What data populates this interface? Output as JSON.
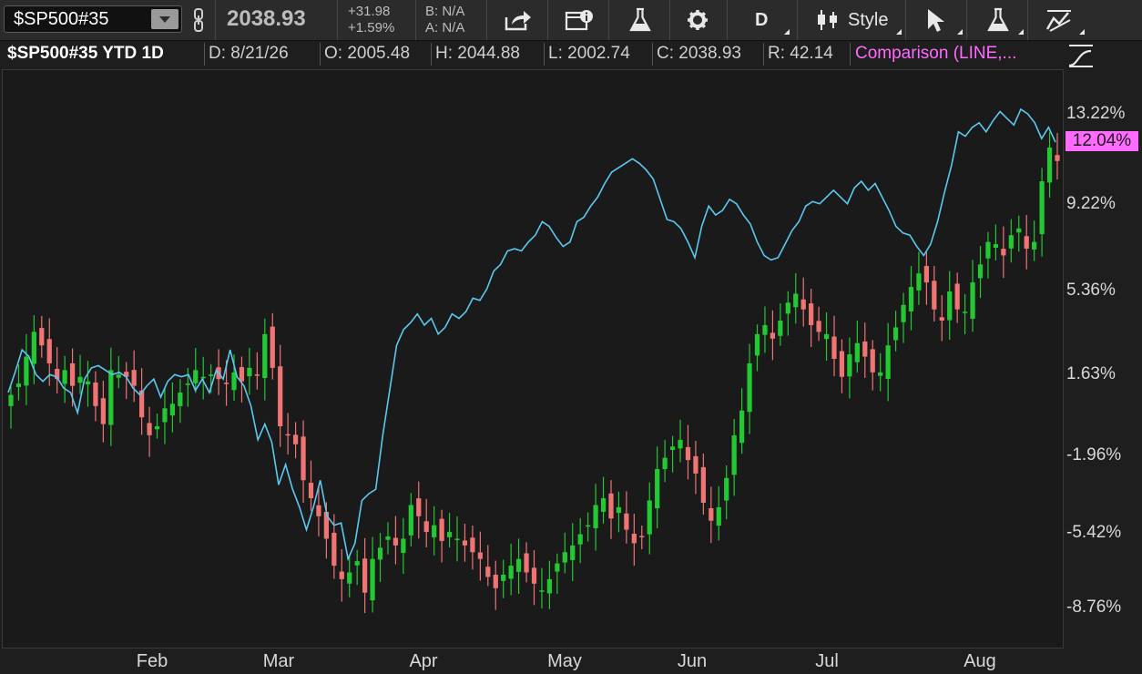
{
  "toolbar": {
    "symbol": "$SP500#35",
    "last_price": "2038.93",
    "change_abs": "+31.98",
    "change_pct": "+1.59%",
    "bid": "B: N/A",
    "ask": "A: N/A",
    "period_label": "D",
    "style_label": "Style",
    "icons": [
      "link-icon",
      "share-icon",
      "snapshot-icon",
      "flask-icon",
      "gear-icon",
      "candlestick-icon",
      "cursor-icon",
      "study-flask-icon",
      "drawing-icon"
    ]
  },
  "infobar": {
    "title": "$SP500#35 YTD 1D",
    "date": "D: 8/21/26",
    "open": "O: 2005.48",
    "high": "H: 2044.88",
    "low": "L: 2002.74",
    "close": "C: 2038.93",
    "range": "R: 42.14",
    "comparison": "Comparison (LINE,..."
  },
  "chart_data": {
    "type": "line",
    "style": "candlestick",
    "y_unit": "percent",
    "ylim": [
      -10.2,
      15.0
    ],
    "y_ticks": [
      "13.22%",
      "9.22%",
      "5.36%",
      "1.63%",
      "-1.96%",
      "-5.42%",
      "-8.76%"
    ],
    "x_ticks": [
      "Feb",
      "Mar",
      "Apr",
      "May",
      "Jun",
      "Jul",
      "Aug"
    ],
    "current_comparison_badge": "12.04%",
    "colors": {
      "up": "#22c933",
      "down": "#f07474",
      "comparison": "#5cc8f0",
      "badge": "#ff6bff"
    },
    "candles_close_pct": [
      0.8,
      1.3,
      2.5,
      3.6,
      3.0,
      2.2,
      1.5,
      1.9,
      1.2,
      1.6,
      1.4,
      0.3,
      -0.5,
      1.9,
      1.7,
      1.6,
      1.2,
      -0.2,
      -1.0,
      -0.6,
      0.2,
      0.4,
      0.9,
      1.3,
      1.9,
      1.6,
      1.7,
      1.5,
      1.3,
      1.8,
      1.4,
      2.0,
      1.7,
      3.5,
      2.0,
      -0.6,
      -1.0,
      -1.4,
      -3.0,
      -3.8,
      -4.6,
      -5.6,
      -6.8,
      -7.4,
      -7.1,
      -6.6,
      -8.0,
      -6.5,
      -6.0,
      -5.5,
      -5.9,
      -5.6,
      -4.1,
      -4.6,
      -5.3,
      -5.0,
      -5.7,
      -5.3,
      -5.6,
      -5.9,
      -6.2,
      -6.5,
      -7.3,
      -7.8,
      -7.2,
      -6.8,
      -6.5,
      -7.1,
      -7.6,
      -7.9,
      -7.4,
      -6.7,
      -6.2,
      -5.9,
      -5.4,
      -5.0,
      -4.1,
      -3.8,
      -4.7,
      -4.2,
      -5.2,
      -5.8,
      -5.5,
      -3.9,
      -2.5,
      -2.0,
      -1.5,
      -1.2,
      -2.1,
      -2.7,
      -4.0,
      -4.8,
      -4.2,
      -2.9,
      -1.0,
      0.1,
      2.2,
      3.5,
      3.9,
      3.3,
      4.1,
      4.9,
      5.3,
      4.6,
      3.9,
      3.6,
      3.5,
      2.4,
      1.6,
      2.6,
      3.1,
      2.5,
      1.8,
      1.8,
      3.0,
      3.8,
      4.8,
      5.6,
      6.2,
      5.8,
      4.6,
      4.1,
      5.4,
      4.6,
      4.5,
      5.8,
      6.6,
      7.6,
      7.5,
      7.0,
      7.9,
      8.2,
      7.3,
      7.6,
      10.3,
      11.8,
      11.2
    ],
    "comparison_pct": [
      0.9,
      1.8,
      2.8,
      2.5,
      1.7,
      1.4,
      1.7,
      1.6,
      1.1,
      0.9,
      0.0,
      1.5,
      2.0,
      2.1,
      1.9,
      1.7,
      1.8,
      1.6,
      1.1,
      0.8,
      1.2,
      1.5,
      0.7,
      1.4,
      1.7,
      1.6,
      1.7,
      1.0,
      1.5,
      0.9,
      1.9,
      1.5,
      2.8,
      1.6,
      1.2,
      0.3,
      -1.2,
      -0.5,
      -1.3,
      -3.2,
      -2.3,
      -3.4,
      -4.2,
      -5.2,
      -4.2,
      -3.0,
      -4.6,
      -5.0,
      -4.9,
      -6.5,
      -5.8,
      -3.9,
      -3.6,
      -3.4,
      -1.0,
      1.0,
      3.0,
      3.7,
      4.0,
      4.4,
      3.9,
      4.2,
      3.5,
      3.8,
      4.4,
      4.2,
      4.5,
      5.1,
      5.0,
      5.5,
      6.3,
      6.6,
      7.2,
      7.3,
      7.2,
      7.6,
      7.9,
      8.5,
      8.3,
      7.8,
      7.4,
      7.6,
      8.5,
      8.7,
      9.2,
      9.6,
      10.2,
      10.7,
      10.9,
      11.1,
      11.3,
      11.1,
      10.8,
      10.4,
      9.5,
      8.6,
      8.5,
      8.2,
      7.6,
      6.9,
      8.3,
      9.2,
      8.8,
      9.0,
      9.5,
      9.3,
      8.8,
      8.4,
      7.6,
      7.0,
      6.8,
      6.9,
      7.5,
      8.1,
      8.5,
      9.2,
      9.4,
      9.3,
      9.6,
      9.9,
      9.6,
      9.3,
      10.0,
      10.3,
      9.9,
      10.2,
      9.6,
      9.0,
      8.3,
      8.0,
      7.9,
      7.4,
      7.0,
      7.5,
      8.5,
      9.8,
      11.0,
      12.5,
      12.3,
      12.7,
      12.9,
      12.5,
      13.0,
      13.4,
      13.1,
      12.8,
      13.5,
      13.3,
      12.9,
      12.2,
      12.7,
      12.04
    ]
  }
}
